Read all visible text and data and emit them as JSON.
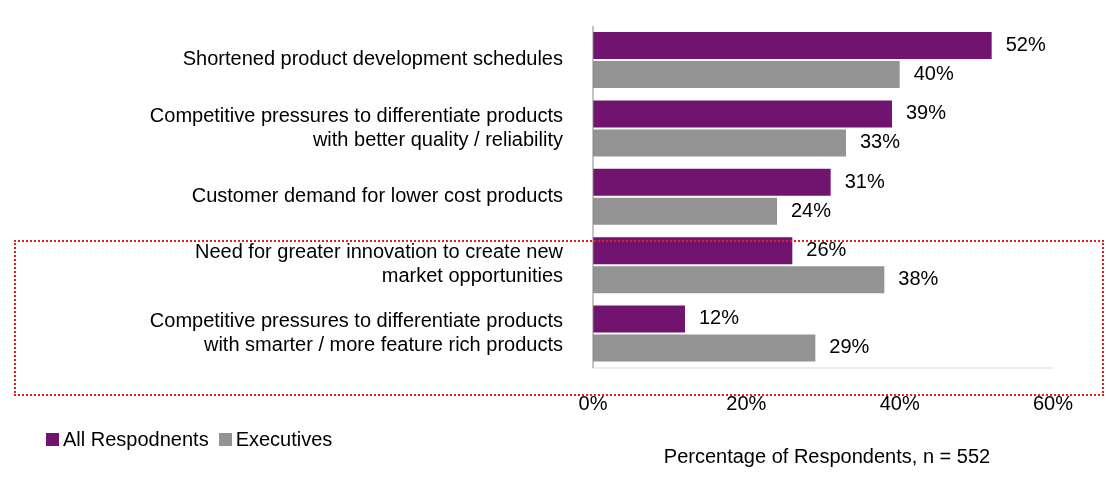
{
  "chart_data": {
    "type": "bar",
    "orientation": "horizontal",
    "xlabel": "Percentage of Respondents, n = 552",
    "categories": [
      "Shortened product development schedules",
      "Competitive pressures to differentiate products with better quality / reliability",
      "Customer demand for lower cost products",
      "Need for greater innovation to create new market opportunities",
      "Competitive pressures to differentiate products with smarter / more feature rich products"
    ],
    "series": [
      {
        "name": "All Respodnents",
        "color": "#701470",
        "values": [
          52,
          39,
          31,
          26,
          12
        ],
        "value_labels": [
          "52%",
          "39%",
          "31%",
          "26%",
          "12%"
        ]
      },
      {
        "name": "Executives",
        "color": "#939393",
        "values": [
          40,
          33,
          24,
          38,
          29
        ],
        "value_labels": [
          "40%",
          "33%",
          "24%",
          "38%",
          "29%"
        ]
      }
    ],
    "xlim": [
      0,
      60
    ],
    "xticks": [
      {
        "value": 0,
        "label": "0%"
      },
      {
        "value": 20,
        "label": "20%"
      },
      {
        "value": 40,
        "label": "40%"
      },
      {
        "value": 60,
        "label": "60%"
      }
    ],
    "grid": false,
    "legend": "bottom left"
  }
}
